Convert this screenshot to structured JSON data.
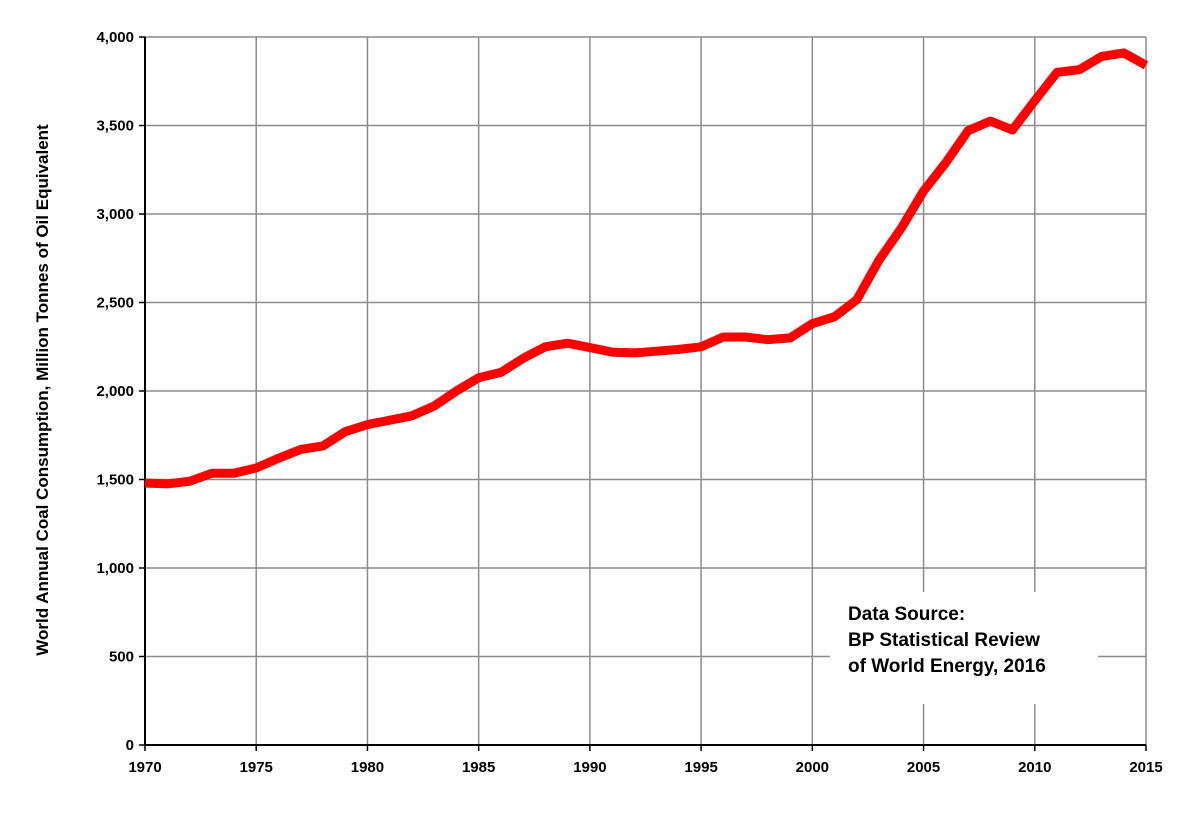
{
  "chart_data": {
    "type": "line",
    "title": "",
    "xlabel": "",
    "ylabel": "World Annual Coal Consumption, Million Tonnes of Oil Equivalent",
    "xlim": [
      1970,
      2015
    ],
    "ylim": [
      0,
      4000
    ],
    "x_ticks": [
      "1970",
      "1975",
      "1980",
      "1985",
      "1990",
      "1995",
      "2000",
      "2005",
      "2010",
      "2015"
    ],
    "y_ticks": [
      "0",
      "500",
      "1,000",
      "1,500",
      "2,000",
      "2,500",
      "3,000",
      "3,500",
      "4,000"
    ],
    "grid": true,
    "line_color": "#ff0000",
    "annotation": [
      "Data Source:",
      "BP Statistical Review",
      "of World Energy, 2016"
    ],
    "series": [
      {
        "x": [
          1970,
          1971,
          1972,
          1973,
          1974,
          1975,
          1976,
          1977,
          1978,
          1979,
          1980,
          1981,
          1982,
          1983,
          1984,
          1985,
          1986,
          1987,
          1988,
          1989,
          1990,
          1991,
          1992,
          1993,
          1994,
          1995,
          1996,
          1997,
          1998,
          1999,
          2000,
          2001,
          2002,
          2003,
          2004,
          2005,
          2006,
          2007,
          2008,
          2009,
          2010,
          2011,
          2012,
          2013,
          2014,
          2015
        ],
        "y": [
          1480,
          1475,
          1490,
          1535,
          1535,
          1565,
          1620,
          1670,
          1690,
          1770,
          1810,
          1835,
          1860,
          1915,
          2000,
          2075,
          2105,
          2185,
          2250,
          2270,
          2245,
          2220,
          2215,
          2225,
          2235,
          2250,
          2305,
          2305,
          2290,
          2300,
          2380,
          2420,
          2515,
          2740,
          2920,
          3130,
          3290,
          3470,
          3525,
          3475,
          3640,
          3800,
          3815,
          3890,
          3910,
          3840
        ]
      }
    ]
  }
}
